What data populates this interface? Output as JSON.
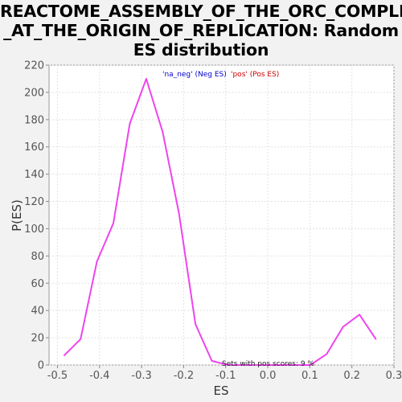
{
  "chart_data": {
    "type": "line",
    "title_lines": [
      "REACTOME_ASSEMBLY_OF_THE_ORC_COMPLEX",
      "_AT_THE_ORIGIN_OF_REPLICATION: Random",
      "ES distribution"
    ],
    "xlabel": "ES",
    "ylabel": "P(ES)",
    "xlim": [
      -0.52,
      0.3
    ],
    "ylim": [
      0,
      220
    ],
    "x_ticks": [
      -0.5,
      -0.4,
      -0.3,
      -0.2,
      -0.1,
      0.0,
      0.1,
      0.2,
      0.3
    ],
    "x_tick_labels": [
      "-0.5",
      "-0.4",
      "-0.3",
      "-0.2",
      "-0.1",
      "0.0",
      "0.1",
      "0.2",
      "0.3"
    ],
    "y_ticks": [
      0,
      20,
      40,
      60,
      80,
      100,
      120,
      140,
      160,
      180,
      200,
      220
    ],
    "y_tick_labels": [
      "0",
      "20",
      "40",
      "60",
      "80",
      "100",
      "120",
      "140",
      "160",
      "180",
      "200",
      "220"
    ],
    "grid": true,
    "legend_position": "top-center",
    "legend": [
      {
        "text": "'na_neg' (Neg ES)",
        "color": "#0000cc"
      },
      {
        "text": "'pos' (Pos ES)",
        "color": "#cc0000"
      }
    ],
    "annotation": "Sets with pos scores: 9 %",
    "series": [
      {
        "color": "#ee44ee",
        "x": [
          -0.484,
          -0.445,
          -0.406,
          -0.367,
          -0.328,
          -0.289,
          -0.25,
          -0.211,
          -0.172,
          -0.133,
          -0.094,
          -0.055,
          -0.016,
          0.023,
          0.062,
          0.101,
          0.14,
          0.179,
          0.218,
          0.257
        ],
        "y": [
          7,
          19,
          76,
          104,
          177,
          210,
          171,
          111,
          30,
          3,
          0,
          0,
          0,
          0,
          0,
          0,
          8,
          28,
          37,
          19
        ]
      }
    ]
  }
}
